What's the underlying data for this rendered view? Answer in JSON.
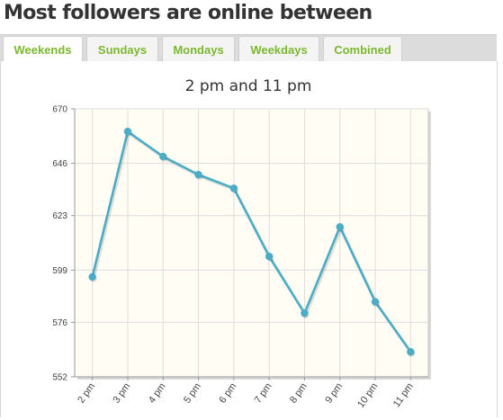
{
  "header": {
    "title": "Most followers are online between"
  },
  "tabs": [
    {
      "label": "Weekends",
      "active": true
    },
    {
      "label": "Sundays",
      "active": false
    },
    {
      "label": "Mondays",
      "active": false
    },
    {
      "label": "Weekdays",
      "active": false
    },
    {
      "label": "Combined",
      "active": false
    }
  ],
  "colors": {
    "accent": "#7cb82f",
    "line": "#4bacc6",
    "plot_background": "#fffdf4"
  },
  "chart_data": {
    "type": "line",
    "title": "2 pm and 11 pm",
    "xlabel": "",
    "ylabel": "",
    "categories": [
      "2 pm",
      "3 pm",
      "4 pm",
      "5 pm",
      "6 pm",
      "7 pm",
      "8 pm",
      "9 pm",
      "10 pm",
      "11 pm"
    ],
    "values": [
      596,
      660,
      649,
      641,
      635,
      605,
      580,
      618,
      585,
      563
    ],
    "y_ticks": [
      552,
      576,
      599,
      623,
      646,
      670
    ],
    "ylim": [
      552,
      670
    ],
    "grid": true,
    "legend": "none"
  }
}
